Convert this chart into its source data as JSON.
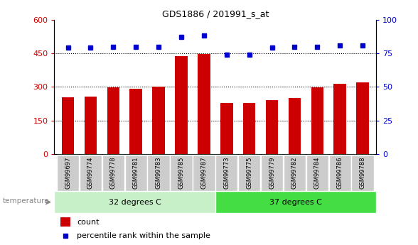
{
  "title": "GDS1886 / 201991_s_at",
  "samples": [
    "GSM99697",
    "GSM99774",
    "GSM99778",
    "GSM99781",
    "GSM99783",
    "GSM99785",
    "GSM99787",
    "GSM99773",
    "GSM99775",
    "GSM99779",
    "GSM99782",
    "GSM99784",
    "GSM99786",
    "GSM99788"
  ],
  "counts": [
    255,
    258,
    297,
    292,
    302,
    437,
    447,
    228,
    228,
    240,
    252,
    298,
    313,
    322
  ],
  "percentiles": [
    79,
    79,
    80,
    80,
    80,
    87,
    88,
    74,
    74,
    79,
    80,
    80,
    81,
    81
  ],
  "group1_label": "32 degrees C",
  "group2_label": "37 degrees C",
  "group1_count": 7,
  "group2_count": 7,
  "factor_label": "temperature",
  "legend1": "count",
  "legend2": "percentile rank within the sample",
  "bar_color": "#cc0000",
  "dot_color": "#0000cc",
  "group1_color": "#c8f0c8",
  "group2_color": "#44dd44",
  "ylim_left": [
    0,
    600
  ],
  "ylim_right": [
    0,
    100
  ],
  "yticks_left": [
    0,
    150,
    300,
    450,
    600
  ],
  "yticks_right": [
    0,
    25,
    50,
    75,
    100
  ],
  "grid_values": [
    150,
    300,
    450
  ],
  "tick_bg_color": "#cccccc"
}
